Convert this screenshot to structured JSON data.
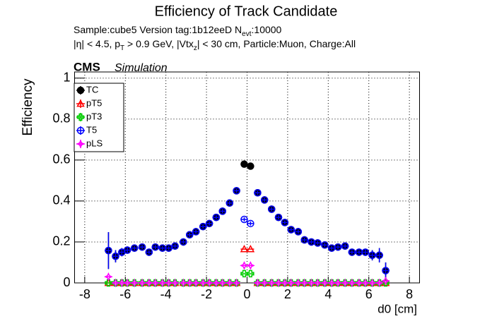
{
  "chart_data": {
    "type": "scatter",
    "title": "Efficiency of Track Candidate",
    "subtitle_lines": [
      [
        {
          "text": "Sample:cube5   Version tag:1b12eeD  N"
        },
        {
          "sub": "evt"
        },
        {
          "text": ":10000"
        }
      ],
      [
        {
          "text": "|η| < 4.5, p"
        },
        {
          "sub": "T"
        },
        {
          "text": " > 0.9 GeV, |Vtx"
        },
        {
          "sub": "z"
        },
        {
          "text": "| < 30 cm, Particle:Muon, Charge:All"
        }
      ]
    ],
    "experiment": "CMS",
    "experiment_tag": "Simulation",
    "x_label": "d0 [cm]",
    "y_label": "Efficiency",
    "xlim": [
      -8.5,
      8.5
    ],
    "ylim": [
      0,
      1.03
    ],
    "xticks": [
      -8,
      -6,
      -4,
      -2,
      0,
      2,
      4,
      6,
      8
    ],
    "yticks": [
      0,
      0.2,
      0.4,
      0.6,
      0.8,
      1
    ],
    "grid": true,
    "legend": "upper left",
    "x": [
      -6.83,
      -6.48,
      -6.17,
      -5.9,
      -5.55,
      -5.17,
      -4.83,
      -4.52,
      -4.17,
      -3.86,
      -3.55,
      -3.14,
      -2.83,
      -2.52,
      -2.17,
      -1.86,
      -1.52,
      -1.21,
      -0.86,
      -0.52,
      -0.14,
      0.17,
      0.52,
      0.86,
      1.21,
      1.55,
      1.86,
      2.17,
      2.52,
      2.83,
      3.17,
      3.48,
      3.83,
      4.17,
      4.48,
      4.83,
      5.17,
      5.52,
      5.83,
      6.17,
      6.52,
      6.83
    ],
    "series": [
      {
        "name": "TC",
        "color": "#000000",
        "marker": "filled-circle",
        "values": [
          0.158,
          0.13,
          0.15,
          0.16,
          0.17,
          0.175,
          0.15,
          0.175,
          0.17,
          0.17,
          0.18,
          0.2,
          0.235,
          0.25,
          0.275,
          0.29,
          0.32,
          0.35,
          0.39,
          0.45,
          0.58,
          0.57,
          0.44,
          0.405,
          0.36,
          0.32,
          0.295,
          0.26,
          0.25,
          0.21,
          0.2,
          0.195,
          0.185,
          0.17,
          0.175,
          0.18,
          0.15,
          0.15,
          0.15,
          0.135,
          0.135,
          0.06
        ],
        "errors": [
          0.09,
          0.03,
          0.02,
          0.015,
          0.01,
          0.01,
          0.01,
          0.01,
          0.01,
          0.01,
          0.01,
          0.01,
          0.01,
          0.01,
          0.01,
          0.01,
          0.01,
          0.01,
          0.01,
          0.01,
          0.01,
          0.01,
          0.01,
          0.01,
          0.01,
          0.01,
          0.01,
          0.01,
          0.01,
          0.01,
          0.01,
          0.01,
          0.01,
          0.01,
          0.01,
          0.01,
          0.01,
          0.01,
          0.015,
          0.025,
          0.035,
          0.04
        ]
      },
      {
        "name": "pT5",
        "color": "#ff0000",
        "marker": "open-triangle",
        "values": [
          0,
          0,
          0,
          0,
          0,
          0,
          0,
          0,
          0,
          0,
          0,
          0,
          0,
          0,
          0,
          0,
          0,
          0,
          0,
          0,
          0.165,
          0.165,
          0,
          0,
          0,
          0,
          0,
          0,
          0,
          0,
          0,
          0,
          0,
          0,
          0,
          0,
          0,
          0,
          0,
          0,
          0,
          0
        ]
      },
      {
        "name": "pT3",
        "color": "#00cc00",
        "marker": "open-cross",
        "values": [
          0,
          0,
          0,
          0,
          0,
          0,
          0,
          0,
          0,
          0,
          0,
          0,
          0,
          0,
          0,
          0,
          0,
          0,
          0,
          0,
          0.045,
          0.045,
          0,
          0,
          0,
          0,
          0,
          0,
          0,
          0,
          0,
          0,
          0,
          0,
          0,
          0,
          0,
          0,
          0,
          0,
          0,
          0
        ]
      },
      {
        "name": "T5",
        "color": "#0000ff",
        "marker": "open-circle",
        "values": [
          0.158,
          0.13,
          0.15,
          0.16,
          0.17,
          0.175,
          0.15,
          0.175,
          0.17,
          0.17,
          0.18,
          0.2,
          0.235,
          0.25,
          0.275,
          0.29,
          0.32,
          0.35,
          0.39,
          0.45,
          0.31,
          0.29,
          0.44,
          0.405,
          0.36,
          0.32,
          0.295,
          0.26,
          0.25,
          0.21,
          0.2,
          0.195,
          0.185,
          0.17,
          0.175,
          0.18,
          0.15,
          0.15,
          0.15,
          0.135,
          0.135,
          0.06
        ],
        "errors": [
          0.09,
          0.03,
          0.02,
          0.015,
          0.01,
          0.01,
          0.01,
          0.01,
          0.01,
          0.01,
          0.01,
          0.01,
          0.01,
          0.01,
          0.01,
          0.01,
          0.01,
          0.01,
          0.01,
          0.01,
          0.01,
          0.01,
          0.01,
          0.01,
          0.01,
          0.01,
          0.01,
          0.01,
          0.01,
          0.01,
          0.01,
          0.01,
          0.01,
          0.01,
          0.01,
          0.01,
          0.01,
          0.01,
          0.015,
          0.025,
          0.035,
          0.04
        ]
      },
      {
        "name": "pLS",
        "color": "#ff00ff",
        "marker": "open-star",
        "values": [
          0.03,
          0,
          0,
          0,
          0,
          0,
          0,
          0,
          0,
          0,
          0,
          0,
          0,
          0,
          0,
          0,
          0,
          0,
          0,
          0,
          0.085,
          0.085,
          0,
          0,
          0,
          0,
          0,
          0,
          0,
          0,
          0,
          0,
          0,
          0,
          0,
          0,
          0,
          0,
          0,
          0,
          0,
          0.01
        ]
      }
    ]
  }
}
